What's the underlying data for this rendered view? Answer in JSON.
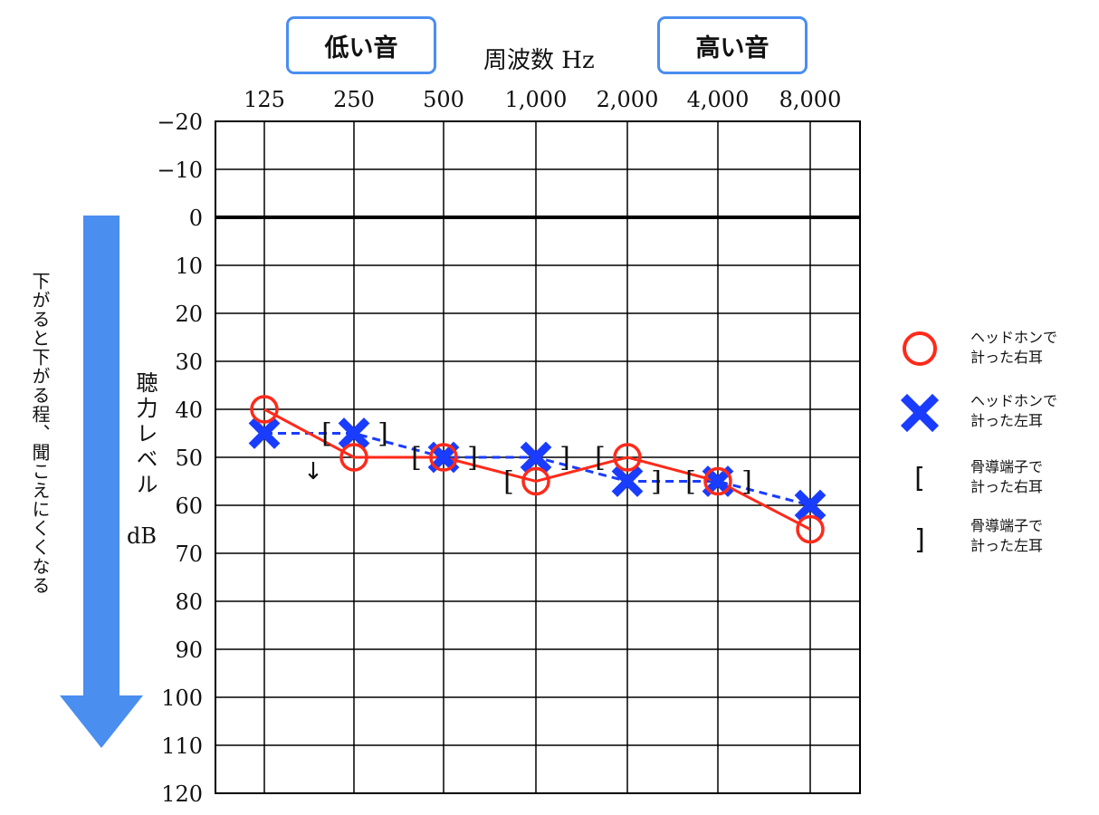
{
  "header": {
    "low_label": "低い音",
    "high_label": "高い音",
    "freq_label": "周波数 Hz"
  },
  "side_note": "下がると下がる程、聞こえにくくなる",
  "y_axis_label": "聴力レベル",
  "y_axis_unit": "dB",
  "legend": {
    "right_air": "ヘッドホンで\n計った右耳",
    "left_air": "ヘッドホンで\n計った左耳",
    "right_bone": "骨導端子で\n計った右耳",
    "left_bone": "骨導端子で\n計った左耳"
  },
  "colors": {
    "right": "#ff2a1a",
    "left": "#1a3cff",
    "arrow": "#4a8ef0",
    "box_border": "#4a8ef0"
  },
  "chart_data": {
    "type": "line",
    "categories": [
      "125",
      "250",
      "500",
      "1,000",
      "2,000",
      "4,000",
      "8,000"
    ],
    "yticks": [
      "−20",
      "−10",
      "0",
      "10",
      "20",
      "30",
      "40",
      "50",
      "60",
      "70",
      "80",
      "90",
      "100",
      "110",
      "120"
    ],
    "ylim": [
      -20,
      120
    ],
    "y_inverted": true,
    "grid": true,
    "legend_position": "right",
    "series": [
      {
        "name": "ヘッドホンで計った右耳",
        "marker": "circle",
        "line": "solid",
        "color": "#ff2a1a",
        "values": [
          40,
          50,
          50,
          55,
          50,
          55,
          65
        ]
      },
      {
        "name": "ヘッドホンで計った左耳",
        "marker": "cross",
        "line": "dashed",
        "color": "#1a3cff",
        "values": [
          45,
          45,
          50,
          50,
          55,
          55,
          60
        ]
      },
      {
        "name": "骨導端子で計った右耳",
        "marker": "[",
        "values": [
          null,
          45,
          50,
          55,
          50,
          55,
          null
        ]
      },
      {
        "name": "骨導端子で計った左耳",
        "marker": "]",
        "values": [
          null,
          45,
          50,
          50,
          55,
          55,
          null
        ]
      }
    ],
    "annotations": [
      {
        "text": "↓",
        "category": "250",
        "value": 50
      }
    ]
  }
}
